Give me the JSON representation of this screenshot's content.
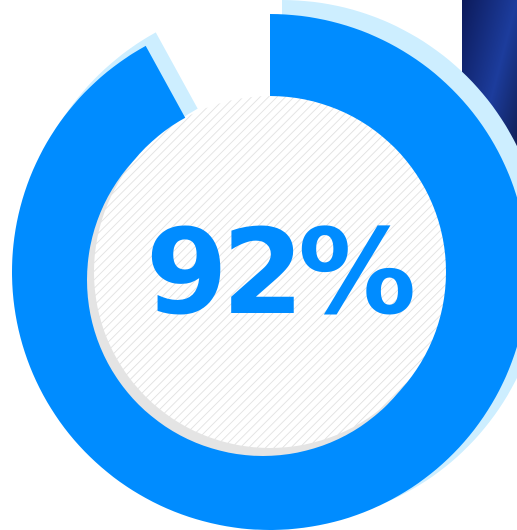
{
  "chart_data": {
    "type": "donut",
    "values": [
      92
    ],
    "value_labels": [
      "92%"
    ],
    "ylim": [
      0,
      100
    ],
    "color": "#008cff",
    "shadow_color": "#cdeeff"
  }
}
